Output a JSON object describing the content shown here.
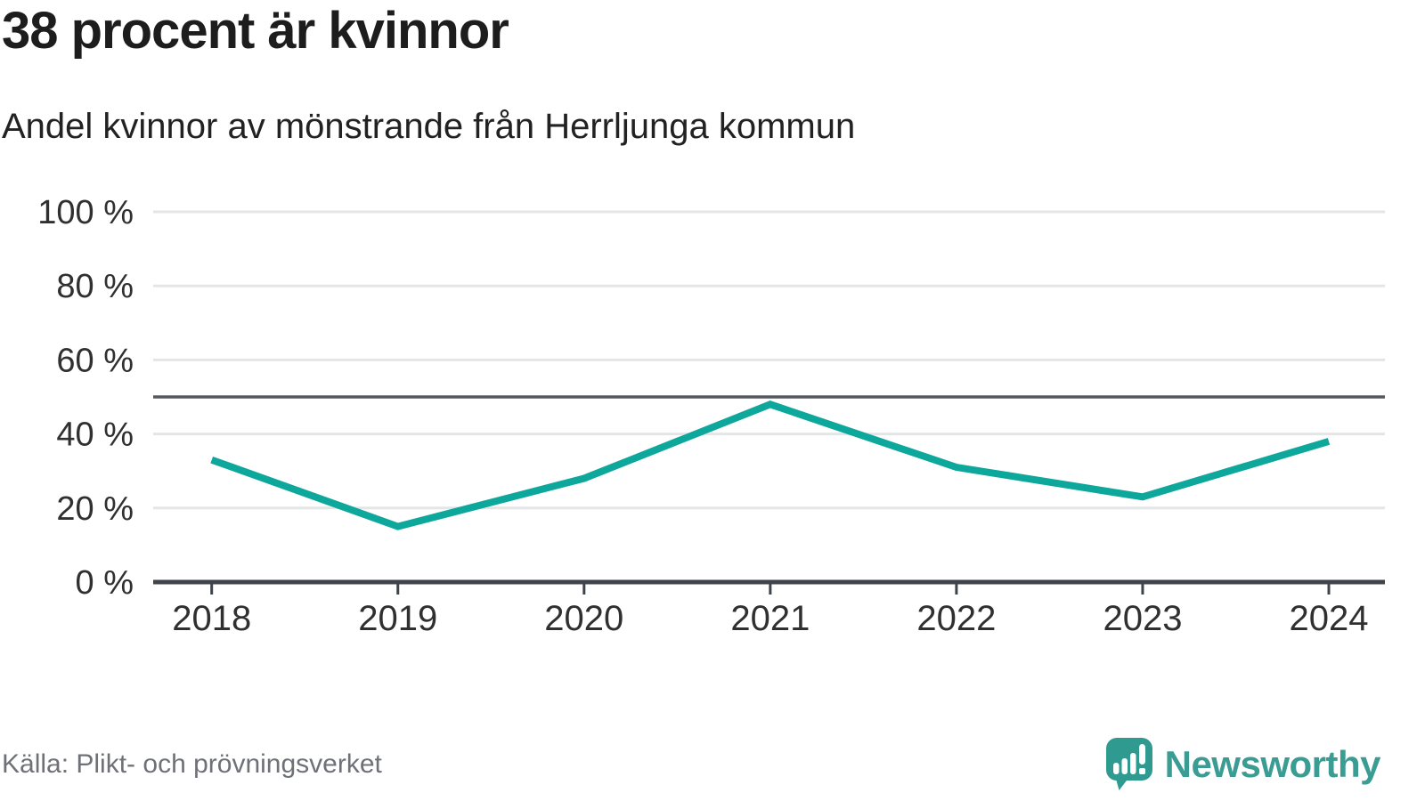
{
  "header": {
    "title": "38 procent är kvinnor",
    "subtitle": "Andel kvinnor av mönstrande från Herrljunga kommun"
  },
  "footer": {
    "source": "Källa: Plikt- och prövningsverket",
    "brand": "Newsworthy"
  },
  "colors": {
    "line": "#0ea79b",
    "reference_line": "#55585c",
    "axis": "#3f434a",
    "gridline": "#e4e5e7",
    "tick_text": "#303030",
    "muted_text": "#6e7177",
    "brand_teal": "#3a9c92",
    "icon_teal": "#2f9a90"
  },
  "chart_data": {
    "type": "line",
    "title": "38 procent är kvinnor",
    "subtitle": "Andel kvinnor av mönstrande från Herrljunga kommun",
    "categories": [
      "2018",
      "2019",
      "2020",
      "2021",
      "2022",
      "2023",
      "2024"
    ],
    "series": [
      {
        "name": "Andel kvinnor av mönstrande",
        "values": [
          33,
          15,
          28,
          48,
          31,
          23,
          38
        ]
      }
    ],
    "unit": "%",
    "ylim": [
      0,
      100
    ],
    "yticks": [
      {
        "value": 100,
        "label": "100 %"
      },
      {
        "value": 80,
        "label": "80 %"
      },
      {
        "value": 60,
        "label": "60 %"
      },
      {
        "value": 40,
        "label": "40 %"
      },
      {
        "value": 20,
        "label": "20 %"
      },
      {
        "value": 0,
        "label": "0 %"
      }
    ],
    "reference_line_y": 50,
    "grid": "horizontal",
    "legend": "none",
    "line_color": "#0ea79b",
    "source": "Källa: Plikt- och prövningsverket"
  }
}
